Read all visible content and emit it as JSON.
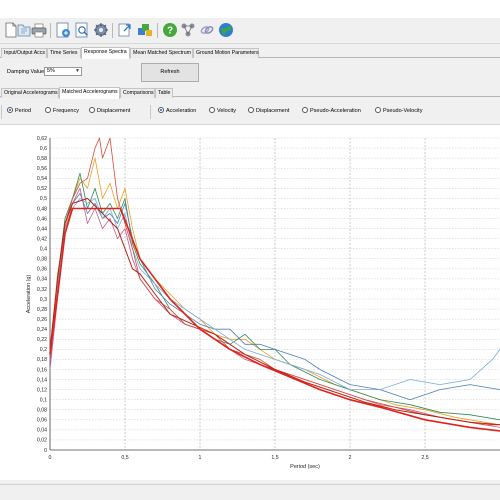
{
  "colors": {
    "toolbar_bg": "#f0f0f0",
    "plot_bg": "#ffffff",
    "grid": "#9a9a9a",
    "target_spectrum": "#d9311e",
    "mean_spectrum": "#b22a1b"
  },
  "toolbar": {
    "buttons": [
      "new-file-icon",
      "open-file-icon",
      "print-icon",
      "add-record-icon",
      "search-icon",
      "settings-gear-icon",
      "export-icon",
      "layers-icon",
      "help-icon",
      "network-icon",
      "link-icon",
      "globe-icon"
    ]
  },
  "main_tabs": [
    {
      "label": "Input/Output Accs",
      "active": false
    },
    {
      "label": "Time Series",
      "active": false
    },
    {
      "label": "Response Spectra",
      "active": true
    },
    {
      "label": "Mean Matched Spectrum",
      "active": false
    },
    {
      "label": "Ground Motion Parameters",
      "active": false
    }
  ],
  "damping": {
    "label": "Damping Value",
    "value": "5%",
    "refresh_label": "Refresh"
  },
  "sub_tabs": [
    {
      "label": "Original Accelerograms",
      "active": false
    },
    {
      "label": "Matched Accelerograms",
      "active": true
    },
    {
      "label": "Comparisons",
      "active": false
    },
    {
      "label": "Table",
      "active": false
    }
  ],
  "x_mode_radios": [
    {
      "label": "Period",
      "checked": true
    },
    {
      "label": "Frequency",
      "checked": false
    },
    {
      "label": "Displacement",
      "checked": false
    }
  ],
  "y_mode_radios": [
    {
      "label": "Acceleration",
      "checked": true
    },
    {
      "label": "Velocity",
      "checked": false
    },
    {
      "label": "Displacement",
      "checked": false
    },
    {
      "label": "Pseudo-Acceleration",
      "checked": false
    },
    {
      "label": "Pseudo-Velocity",
      "checked": false
    }
  ],
  "chart_data": {
    "type": "line",
    "xlabel": "Period (sec)",
    "ylabel": "Acceleration (g)",
    "xlim": [
      0,
      3.0
    ],
    "ylim": [
      0,
      0.62
    ],
    "x_ticks": [
      "0",
      "0,5",
      "1",
      "1,5",
      "2",
      "2,5"
    ],
    "y_ticks": [
      "0",
      "0,02",
      "0,04",
      "0,06",
      "0,08",
      "0,1",
      "0,12",
      "0,14",
      "0,16",
      "0,18",
      "0,2",
      "0,22",
      "0,24",
      "0,26",
      "0,28",
      "0,3",
      "0,32",
      "0,34",
      "0,36",
      "0,38",
      "0,4",
      "0,42",
      "0,44",
      "0,46",
      "0,48",
      "0,5",
      "0,52",
      "0,54",
      "0,56",
      "0,58",
      "0,6",
      "0,62"
    ],
    "grid": true,
    "series": [
      {
        "color": "#e0221a",
        "width": 1.6,
        "x": [
          0,
          0.06,
          0.1,
          0.15,
          0.4,
          0.47,
          0.6,
          0.8,
          1.0,
          1.2,
          1.4,
          1.6,
          1.8,
          2.0,
          2.2,
          2.5,
          2.8,
          3.0
        ],
        "y": [
          0.19,
          0.33,
          0.43,
          0.48,
          0.48,
          0.48,
          0.38,
          0.3,
          0.24,
          0.2,
          0.17,
          0.145,
          0.12,
          0.1,
          0.085,
          0.06,
          0.045,
          0.038
        ]
      },
      {
        "color": "#b32418",
        "width": 1.0,
        "x": [
          0,
          0.05,
          0.1,
          0.15,
          0.25,
          0.35,
          0.45,
          0.55,
          0.6,
          0.7,
          0.8,
          0.95,
          1.1,
          1.3,
          1.5,
          1.7,
          1.9,
          2.1,
          2.3,
          2.6,
          2.8,
          3.0
        ],
        "y": [
          0.2,
          0.34,
          0.45,
          0.49,
          0.5,
          0.47,
          0.44,
          0.36,
          0.35,
          0.31,
          0.27,
          0.25,
          0.23,
          0.19,
          0.16,
          0.135,
          0.115,
          0.095,
          0.08,
          0.065,
          0.055,
          0.05
        ]
      },
      {
        "color": "#e9a020",
        "width": 0.8,
        "x": [
          0,
          0.05,
          0.1,
          0.15,
          0.2,
          0.25,
          0.3,
          0.35,
          0.4,
          0.45,
          0.5,
          0.55,
          0.6,
          0.7,
          0.8,
          0.9,
          1.0,
          1.1,
          1.2,
          1.3,
          1.4,
          1.5,
          1.7,
          1.9,
          2.1,
          2.3,
          2.5,
          2.7,
          2.9,
          3.0
        ],
        "y": [
          0.19,
          0.35,
          0.44,
          0.5,
          0.54,
          0.52,
          0.58,
          0.5,
          0.53,
          0.48,
          0.52,
          0.44,
          0.38,
          0.34,
          0.31,
          0.28,
          0.26,
          0.23,
          0.22,
          0.22,
          0.2,
          0.18,
          0.16,
          0.13,
          0.11,
          0.09,
          0.08,
          0.065,
          0.055,
          0.05
        ]
      },
      {
        "color": "#2e8b57",
        "width": 0.8,
        "x": [
          0,
          0.05,
          0.1,
          0.15,
          0.2,
          0.25,
          0.3,
          0.35,
          0.4,
          0.45,
          0.5,
          0.55,
          0.6,
          0.7,
          0.8,
          0.9,
          1.0,
          1.1,
          1.2,
          1.3,
          1.4,
          1.5,
          1.6,
          1.8,
          2.0,
          2.2,
          2.4,
          2.6,
          2.8,
          3.0
        ],
        "y": [
          0.18,
          0.34,
          0.46,
          0.5,
          0.55,
          0.48,
          0.52,
          0.47,
          0.49,
          0.46,
          0.5,
          0.41,
          0.37,
          0.33,
          0.28,
          0.25,
          0.24,
          0.22,
          0.21,
          0.23,
          0.2,
          0.2,
          0.17,
          0.14,
          0.12,
          0.1,
          0.09,
          0.075,
          0.07,
          0.06
        ]
      },
      {
        "color": "#4a7fb0",
        "width": 0.8,
        "x": [
          0,
          0.05,
          0.1,
          0.15,
          0.2,
          0.25,
          0.3,
          0.35,
          0.4,
          0.45,
          0.5,
          0.55,
          0.6,
          0.7,
          0.8,
          0.9,
          1.0,
          1.1,
          1.2,
          1.3,
          1.4,
          1.5,
          1.6,
          1.7,
          1.8,
          2.0,
          2.2,
          2.4,
          2.6,
          2.8,
          3.0
        ],
        "y": [
          0.17,
          0.32,
          0.45,
          0.49,
          0.51,
          0.47,
          0.49,
          0.46,
          0.47,
          0.45,
          0.49,
          0.42,
          0.38,
          0.32,
          0.29,
          0.27,
          0.25,
          0.24,
          0.24,
          0.21,
          0.21,
          0.2,
          0.19,
          0.18,
          0.16,
          0.13,
          0.12,
          0.1,
          0.12,
          0.13,
          0.12
        ]
      },
      {
        "color": "#7aa8d8",
        "width": 0.8,
        "x": [
          0,
          0.05,
          0.1,
          0.15,
          0.2,
          0.25,
          0.3,
          0.35,
          0.4,
          0.45,
          0.5,
          0.55,
          0.6,
          0.7,
          0.8,
          0.9,
          1.0,
          1.1,
          1.2,
          1.3,
          1.4,
          1.5,
          1.6,
          1.8,
          2.0,
          2.2,
          2.4,
          2.6,
          2.8,
          2.95,
          3.0
        ],
        "y": [
          0.18,
          0.33,
          0.44,
          0.48,
          0.5,
          0.49,
          0.5,
          0.46,
          0.48,
          0.44,
          0.47,
          0.4,
          0.36,
          0.33,
          0.3,
          0.28,
          0.26,
          0.24,
          0.22,
          0.2,
          0.19,
          0.18,
          0.17,
          0.15,
          0.12,
          0.12,
          0.14,
          0.13,
          0.14,
          0.18,
          0.2
        ]
      },
      {
        "color": "#c85a8a",
        "width": 0.8,
        "x": [
          0,
          0.05,
          0.1,
          0.15,
          0.2,
          0.25,
          0.3,
          0.35,
          0.4,
          0.45,
          0.5,
          0.55,
          0.6,
          0.7,
          0.8,
          0.9,
          1.0,
          1.1,
          1.2,
          1.3,
          1.4,
          1.5,
          1.6,
          1.8,
          2.0,
          2.2,
          2.4,
          2.6,
          2.8,
          3.0
        ],
        "y": [
          0.16,
          0.3,
          0.43,
          0.49,
          0.52,
          0.45,
          0.48,
          0.44,
          0.46,
          0.42,
          0.44,
          0.38,
          0.34,
          0.3,
          0.27,
          0.25,
          0.24,
          0.22,
          0.2,
          0.18,
          0.17,
          0.16,
          0.15,
          0.13,
          0.11,
          0.09,
          0.08,
          0.065,
          0.055,
          0.045
        ]
      },
      {
        "color": "#d44b3a",
        "width": 0.8,
        "x": [
          0,
          0.05,
          0.1,
          0.15,
          0.2,
          0.25,
          0.3,
          0.33,
          0.35,
          0.4,
          0.45,
          0.5,
          0.55,
          0.6,
          0.7,
          0.8,
          0.9,
          1.0,
          1.1,
          1.2,
          1.3,
          1.4,
          1.5,
          1.7,
          1.9,
          2.1,
          2.3,
          2.5,
          2.7,
          2.9,
          3.0
        ],
        "y": [
          0.18,
          0.34,
          0.45,
          0.5,
          0.53,
          0.54,
          0.6,
          0.62,
          0.58,
          0.62,
          0.5,
          0.45,
          0.4,
          0.34,
          0.3,
          0.28,
          0.25,
          0.24,
          0.23,
          0.2,
          0.19,
          0.18,
          0.16,
          0.14,
          0.12,
          0.1,
          0.085,
          0.07,
          0.06,
          0.05,
          0.05
        ]
      }
    ]
  }
}
